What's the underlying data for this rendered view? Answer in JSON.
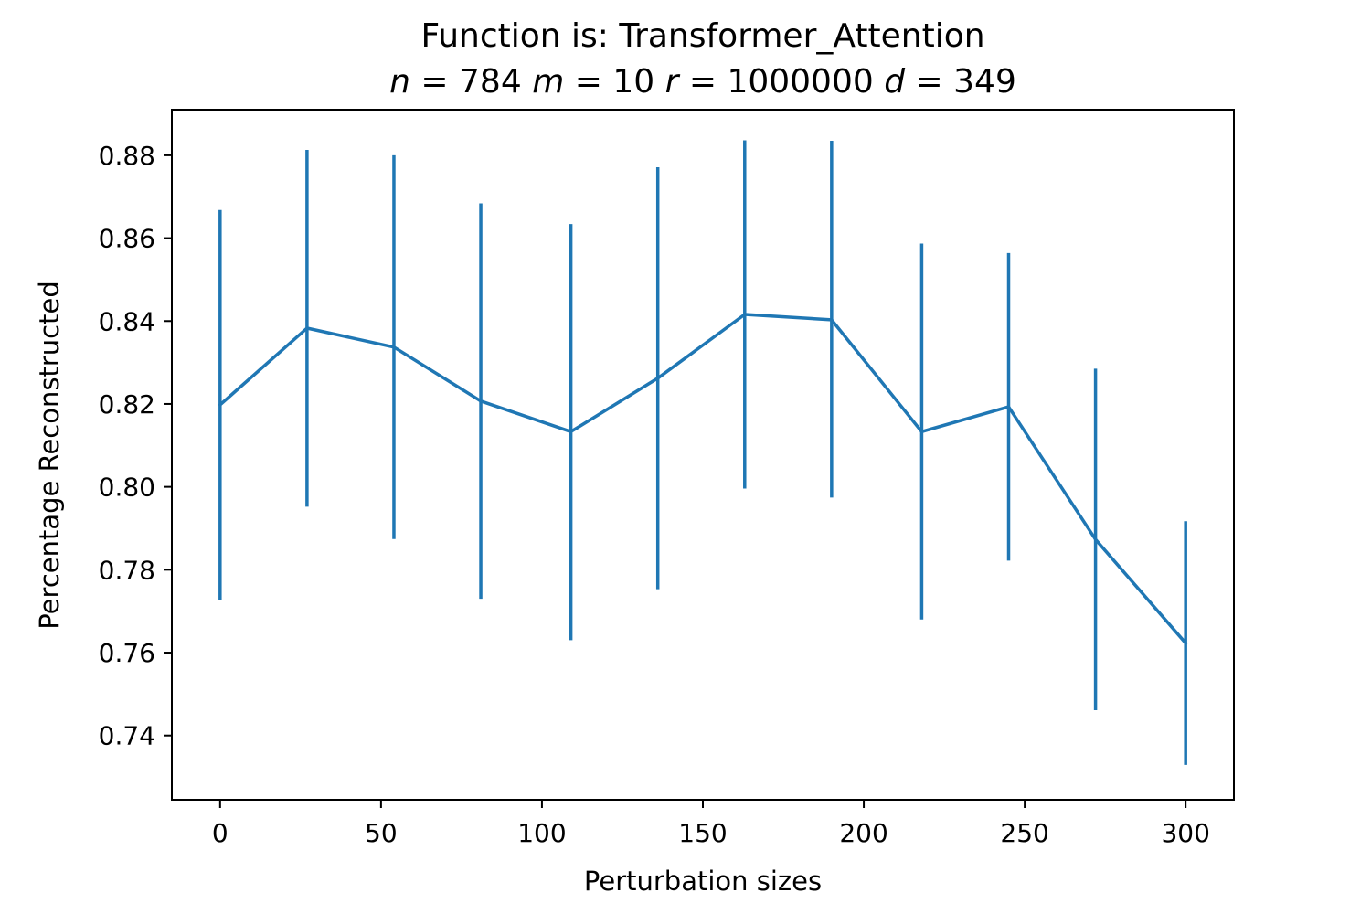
{
  "chart_data": {
    "type": "line",
    "title": "Function is: Transformer_Attention",
    "subtitle_parts": [
      {
        "text": "n",
        "italic": true
      },
      {
        "text": " = 784 ",
        "italic": false
      },
      {
        "text": "m",
        "italic": true
      },
      {
        "text": " = 10 ",
        "italic": false
      },
      {
        "text": "r",
        "italic": true
      },
      {
        "text": " = 1000000 ",
        "italic": false
      },
      {
        "text": "d",
        "italic": true
      },
      {
        "text": " = 349",
        "italic": false
      }
    ],
    "xlabel": "Perturbation sizes",
    "ylabel": "Percentage Reconstructed",
    "xlim": [
      -15,
      315
    ],
    "ylim": [
      0.7245,
      0.891
    ],
    "xticks": [
      0,
      50,
      100,
      150,
      200,
      250,
      300
    ],
    "xtick_labels": [
      "0",
      "50",
      "100",
      "150",
      "200",
      "250",
      "300"
    ],
    "yticks": [
      0.74,
      0.76,
      0.78,
      0.8,
      0.82,
      0.84,
      0.86,
      0.88
    ],
    "ytick_labels": [
      "0.74",
      "0.76",
      "0.78",
      "0.80",
      "0.82",
      "0.84",
      "0.86",
      "0.88"
    ],
    "grid": false,
    "color": "#1f77b4",
    "series": [
      {
        "x": [
          0,
          27,
          54,
          81,
          109,
          136,
          163,
          190,
          218,
          245,
          272,
          300
        ],
        "y": [
          0.8198,
          0.8383,
          0.8337,
          0.8207,
          0.8133,
          0.8262,
          0.8416,
          0.8403,
          0.8133,
          0.8193,
          0.7873,
          0.7623
        ],
        "yerr_low": [
          0.7727,
          0.7952,
          0.7874,
          0.773,
          0.763,
          0.7753,
          0.7996,
          0.7974,
          0.768,
          0.7822,
          0.7461,
          0.7329
        ],
        "yerr_high": [
          0.8668,
          0.8813,
          0.88,
          0.8684,
          0.8634,
          0.8771,
          0.8836,
          0.8835,
          0.8587,
          0.8564,
          0.8285,
          0.7917
        ]
      }
    ]
  }
}
